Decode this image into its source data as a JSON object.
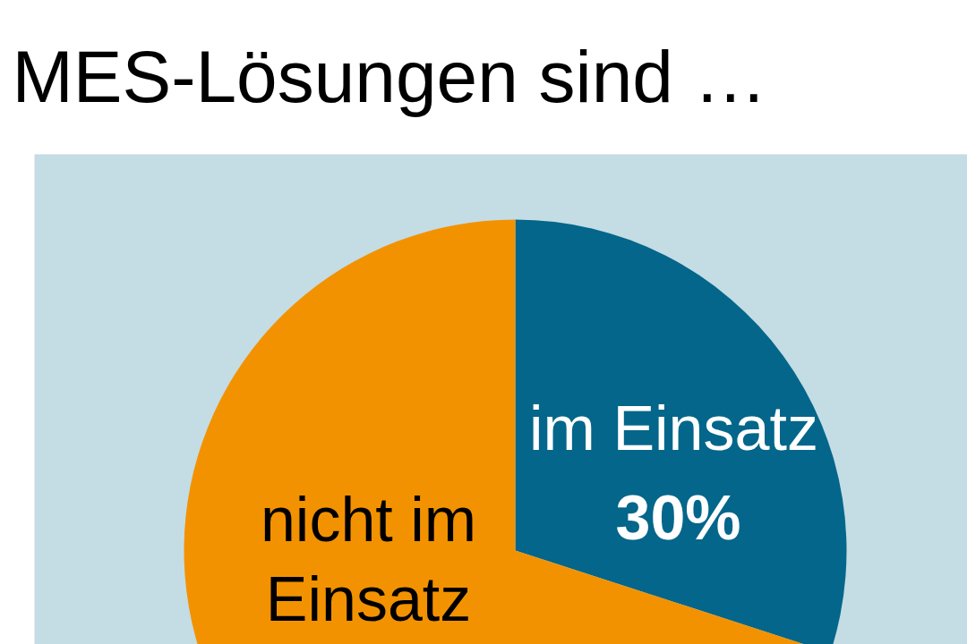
{
  "chart_data": {
    "type": "pie",
    "title": "MES-Lösungen sind …",
    "categories": [
      "im Einsatz",
      "nicht im Einsatz"
    ],
    "values": [
      30,
      70
    ],
    "colors": [
      "#03668a",
      "#f39200"
    ],
    "value_labels": [
      "30%",
      null
    ]
  }
}
